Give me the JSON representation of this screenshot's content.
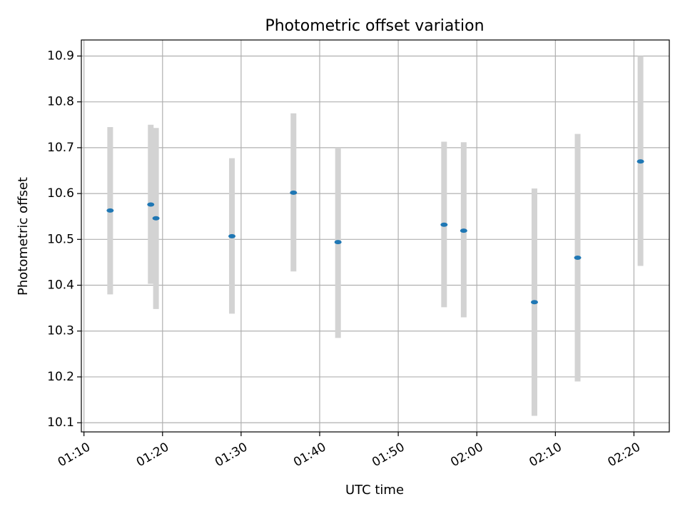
{
  "chart_data": {
    "type": "scatter",
    "title": "Photometric offset variation",
    "xlabel": "UTC time",
    "ylabel": "Photometric offset",
    "x_tick_labels": [
      "01:10",
      "01:20",
      "01:30",
      "01:40",
      "01:50",
      "02:00",
      "02:10",
      "02:20"
    ],
    "y_tick_labels": [
      "10.1",
      "10.2",
      "10.3",
      "10.4",
      "10.5",
      "10.6",
      "10.7",
      "10.8",
      "10.9"
    ],
    "xlim": [
      "01:09:40",
      "02:24:30"
    ],
    "ylim": [
      10.08,
      10.935
    ],
    "grid": true,
    "legend": "none",
    "marker_color": "#1f77b4",
    "errorbar_color": "#d3d3d3",
    "points": [
      {
        "x": "01:13:20",
        "y": 10.563,
        "yerr_low": 10.38,
        "yerr_high": 10.745
      },
      {
        "x": "01:18:30",
        "y": 10.576,
        "yerr_low": 10.403,
        "yerr_high": 10.75
      },
      {
        "x": "01:19:10",
        "y": 10.546,
        "yerr_low": 10.348,
        "yerr_high": 10.743
      },
      {
        "x": "01:28:50",
        "y": 10.507,
        "yerr_low": 10.338,
        "yerr_high": 10.677
      },
      {
        "x": "01:36:40",
        "y": 10.602,
        "yerr_low": 10.43,
        "yerr_high": 10.775
      },
      {
        "x": "01:42:20",
        "y": 10.494,
        "yerr_low": 10.285,
        "yerr_high": 10.7
      },
      {
        "x": "01:55:50",
        "y": 10.532,
        "yerr_low": 10.352,
        "yerr_high": 10.713
      },
      {
        "x": "01:58:20",
        "y": 10.519,
        "yerr_low": 10.33,
        "yerr_high": 10.712
      },
      {
        "x": "02:07:20",
        "y": 10.363,
        "yerr_low": 10.115,
        "yerr_high": 10.611
      },
      {
        "x": "02:12:50",
        "y": 10.46,
        "yerr_low": 10.19,
        "yerr_high": 10.73
      },
      {
        "x": "02:20:50",
        "y": 10.67,
        "yerr_low": 10.442,
        "yerr_high": 10.9
      }
    ]
  }
}
